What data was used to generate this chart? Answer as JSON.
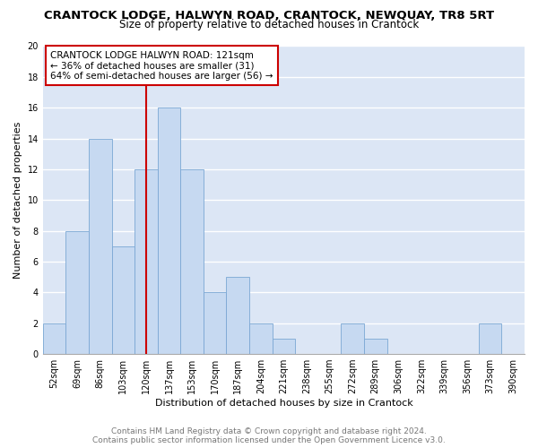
{
  "title": "CRANTOCK LODGE, HALWYN ROAD, CRANTOCK, NEWQUAY, TR8 5RT",
  "subtitle": "Size of property relative to detached houses in Crantock",
  "xlabel": "Distribution of detached houses by size in Crantock",
  "ylabel": "Number of detached properties",
  "categories": [
    "52sqm",
    "69sqm",
    "86sqm",
    "103sqm",
    "120sqm",
    "137sqm",
    "153sqm",
    "170sqm",
    "187sqm",
    "204sqm",
    "221sqm",
    "238sqm",
    "255sqm",
    "272sqm",
    "289sqm",
    "306sqm",
    "322sqm",
    "339sqm",
    "356sqm",
    "373sqm",
    "390sqm"
  ],
  "values": [
    2,
    8,
    14,
    7,
    12,
    16,
    12,
    4,
    5,
    2,
    1,
    0,
    0,
    2,
    1,
    0,
    0,
    0,
    0,
    2,
    0
  ],
  "bar_color": "#c6d9f1",
  "bar_edgecolor": "#7ba7d4",
  "highlight_index": 4,
  "highlight_color": "#cc0000",
  "annotation_lines": [
    "CRANTOCK LODGE HALWYN ROAD: 121sqm",
    "← 36% of detached houses are smaller (31)",
    "64% of semi-detached houses are larger (56) →"
  ],
  "annotation_box_color": "#cc0000",
  "ylim": [
    0,
    20
  ],
  "yticks": [
    0,
    2,
    4,
    6,
    8,
    10,
    12,
    14,
    16,
    18,
    20
  ],
  "footer_line1": "Contains HM Land Registry data © Crown copyright and database right 2024.",
  "footer_line2": "Contains public sector information licensed under the Open Government Licence v3.0.",
  "background_color": "#dce6f5",
  "grid_color": "#ffffff",
  "title_fontsize": 9.5,
  "subtitle_fontsize": 8.5,
  "axis_label_fontsize": 8,
  "tick_fontsize": 7,
  "annotation_fontsize": 7.5,
  "footer_fontsize": 6.5
}
